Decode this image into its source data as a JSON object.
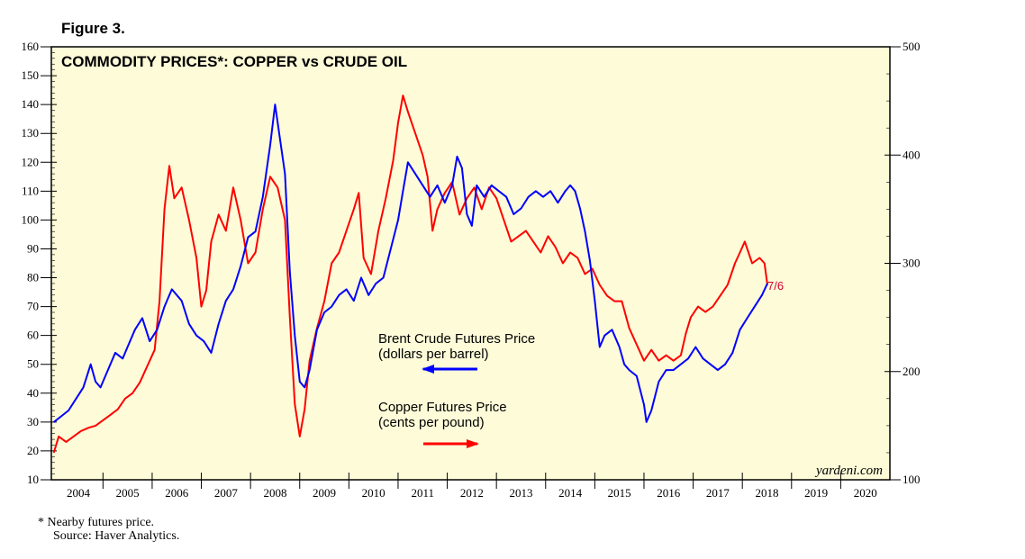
{
  "figure_label": "Figure 3.",
  "footnote": {
    "note": "*  Nearby futures price.",
    "source": "Source: Haver Analytics."
  },
  "chart_data": {
    "type": "line",
    "title": "COMMODITY PRICES*: COPPER vs CRUDE OIL",
    "watermark": "yardeni.com",
    "end_label": "7/6",
    "x_ticks": [
      "2004",
      "2005",
      "2006",
      "2007",
      "2008",
      "2009",
      "2010",
      "2011",
      "2012",
      "2013",
      "2014",
      "2015",
      "2016",
      "2017",
      "2018",
      "2019",
      "2020"
    ],
    "xlim": [
      2003.95,
      2021.0
    ],
    "y_left": {
      "ylim": [
        10,
        160
      ],
      "ticks": [
        10,
        20,
        30,
        40,
        50,
        60,
        70,
        80,
        90,
        100,
        110,
        120,
        130,
        140,
        150,
        160
      ]
    },
    "y_right": {
      "ylim": [
        100,
        500
      ],
      "ticks": [
        100,
        200,
        300,
        400,
        500
      ]
    },
    "plot_bg": "#fefbd8",
    "annotations": [
      {
        "lines": [
          "Brent Crude Futures Price",
          "(dollars per barrel)"
        ],
        "arrow": "left",
        "color": "#0000ff"
      },
      {
        "lines": [
          "Copper Futures Price",
          "(cents per pound)"
        ],
        "arrow": "right",
        "color": "#ff0000"
      }
    ],
    "series": [
      {
        "name": "Brent Crude Futures Price",
        "axis": "left",
        "color": "#0000ff",
        "x": [
          2004.0,
          2004.15,
          2004.3,
          2004.45,
          2004.6,
          2004.75,
          2004.85,
          2004.95,
          2005.1,
          2005.25,
          2005.4,
          2005.5,
          2005.65,
          2005.8,
          2005.95,
          2006.1,
          2006.25,
          2006.4,
          2006.6,
          2006.75,
          2006.9,
          2007.05,
          2007.2,
          2007.35,
          2007.5,
          2007.65,
          2007.8,
          2007.95,
          2008.1,
          2008.25,
          2008.4,
          2008.5,
          2008.6,
          2008.7,
          2008.8,
          2008.9,
          2009.0,
          2009.1,
          2009.2,
          2009.35,
          2009.5,
          2009.65,
          2009.8,
          2009.95,
          2010.1,
          2010.25,
          2010.4,
          2010.55,
          2010.7,
          2010.85,
          2011.0,
          2011.1,
          2011.2,
          2011.35,
          2011.5,
          2011.65,
          2011.8,
          2011.95,
          2012.1,
          2012.2,
          2012.3,
          2012.4,
          2012.5,
          2012.6,
          2012.75,
          2012.9,
          2013.05,
          2013.2,
          2013.35,
          2013.5,
          2013.65,
          2013.8,
          2013.95,
          2014.1,
          2014.25,
          2014.4,
          2014.5,
          2014.6,
          2014.7,
          2014.8,
          2014.9,
          2015.0,
          2015.1,
          2015.2,
          2015.35,
          2015.5,
          2015.6,
          2015.7,
          2015.85,
          2016.0,
          2016.05,
          2016.15,
          2016.3,
          2016.45,
          2016.6,
          2016.75,
          2016.9,
          2017.05,
          2017.2,
          2017.35,
          2017.5,
          2017.65,
          2017.8,
          2017.95,
          2018.1,
          2018.25,
          2018.4,
          2018.51
        ],
        "values": [
          30,
          32,
          34,
          38,
          42,
          50,
          44,
          42,
          48,
          54,
          52,
          56,
          62,
          66,
          58,
          62,
          70,
          76,
          72,
          64,
          60,
          58,
          54,
          64,
          72,
          76,
          84,
          94,
          96,
          108,
          126,
          140,
          128,
          116,
          82,
          60,
          44,
          42,
          48,
          62,
          68,
          70,
          74,
          76,
          72,
          80,
          74,
          78,
          80,
          90,
          100,
          110,
          120,
          116,
          112,
          108,
          112,
          106,
          112,
          122,
          118,
          102,
          98,
          112,
          108,
          112,
          110,
          108,
          102,
          104,
          108,
          110,
          108,
          110,
          106,
          110,
          112,
          110,
          104,
          96,
          86,
          72,
          56,
          60,
          62,
          56,
          50,
          48,
          46,
          36,
          30,
          34,
          44,
          48,
          48,
          50,
          52,
          56,
          52,
          50,
          48,
          50,
          54,
          62,
          66,
          70,
          74,
          78
        ]
      },
      {
        "name": "Copper Futures Price",
        "axis": "right",
        "color": "#ff0000",
        "x": [
          2004.0,
          2004.1,
          2004.25,
          2004.4,
          2004.55,
          2004.7,
          2004.85,
          2005.0,
          2005.15,
          2005.3,
          2005.45,
          2005.6,
          2005.75,
          2005.9,
          2006.05,
          2006.15,
          2006.25,
          2006.35,
          2006.45,
          2006.6,
          2006.75,
          2006.9,
          2007.0,
          2007.1,
          2007.2,
          2007.35,
          2007.5,
          2007.65,
          2007.8,
          2007.95,
          2008.1,
          2008.25,
          2008.4,
          2008.55,
          2008.7,
          2008.8,
          2008.9,
          2009.0,
          2009.1,
          2009.2,
          2009.35,
          2009.5,
          2009.65,
          2009.8,
          2009.95,
          2010.1,
          2010.2,
          2010.3,
          2010.45,
          2010.6,
          2010.75,
          2010.9,
          2011.0,
          2011.1,
          2011.2,
          2011.35,
          2011.5,
          2011.6,
          2011.7,
          2011.8,
          2011.95,
          2012.1,
          2012.25,
          2012.4,
          2012.55,
          2012.7,
          2012.85,
          2013.0,
          2013.15,
          2013.3,
          2013.45,
          2013.6,
          2013.75,
          2013.9,
          2014.05,
          2014.2,
          2014.35,
          2014.5,
          2014.65,
          2014.8,
          2014.95,
          2015.1,
          2015.25,
          2015.4,
          2015.55,
          2015.7,
          2015.85,
          2016.0,
          2016.15,
          2016.3,
          2016.45,
          2016.6,
          2016.75,
          2016.85,
          2016.95,
          2017.1,
          2017.25,
          2017.4,
          2017.55,
          2017.7,
          2017.85,
          2017.95,
          2018.05,
          2018.2,
          2018.35,
          2018.45,
          2018.51
        ],
        "values": [
          125,
          140,
          135,
          140,
          145,
          148,
          150,
          155,
          160,
          165,
          175,
          180,
          190,
          205,
          220,
          265,
          350,
          390,
          360,
          370,
          340,
          305,
          260,
          275,
          320,
          345,
          330,
          370,
          340,
          300,
          310,
          350,
          380,
          370,
          340,
          250,
          170,
          140,
          165,
          210,
          240,
          265,
          300,
          310,
          330,
          350,
          365,
          305,
          290,
          330,
          360,
          395,
          430,
          455,
          440,
          420,
          400,
          380,
          330,
          350,
          365,
          375,
          345,
          360,
          370,
          350,
          370,
          360,
          340,
          320,
          325,
          330,
          320,
          310,
          325,
          315,
          300,
          310,
          305,
          290,
          295,
          280,
          270,
          265,
          265,
          240,
          225,
          210,
          220,
          210,
          215,
          210,
          215,
          235,
          250,
          260,
          255,
          260,
          270,
          280,
          300,
          310,
          320,
          300,
          305,
          300,
          280
        ]
      }
    ]
  }
}
